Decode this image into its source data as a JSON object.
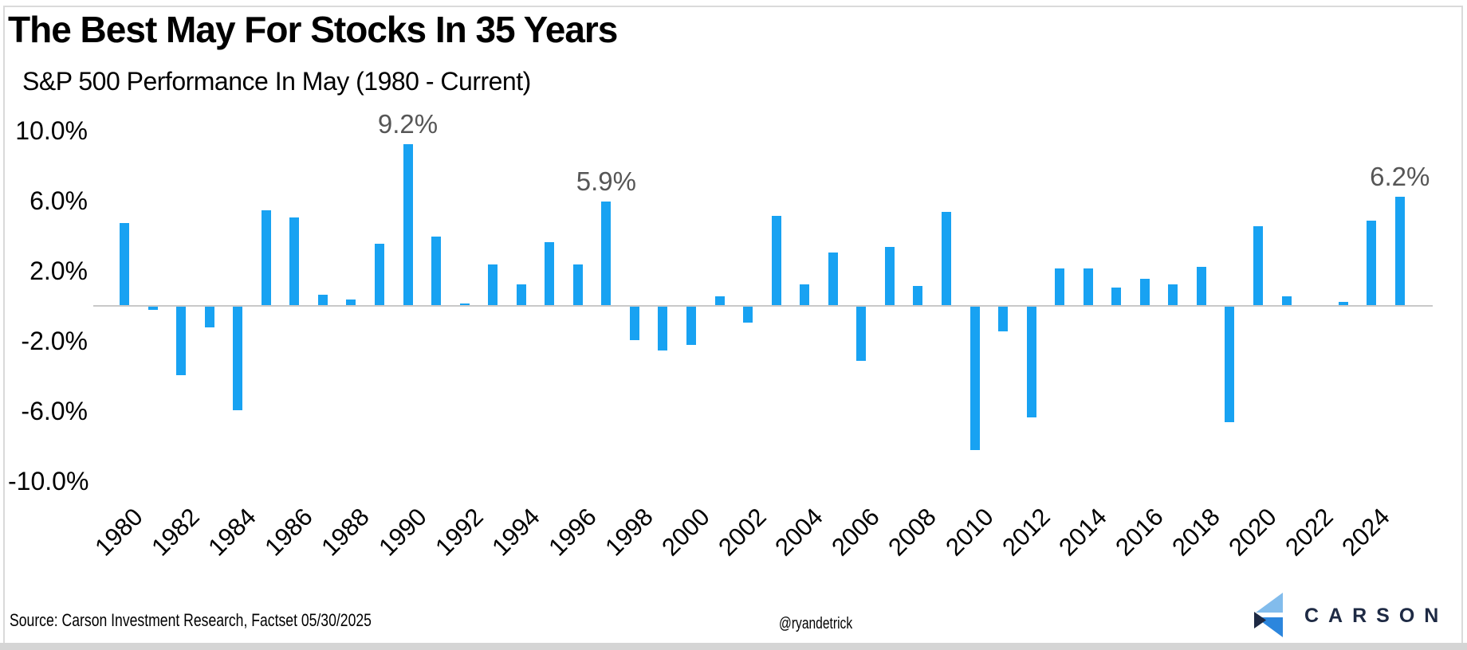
{
  "header": {
    "title": "The Best May For Stocks In 35 Years",
    "subtitle": "S&P 500 Performance In May (1980 - Current)"
  },
  "footer": {
    "source": "Source: Carson Investment Research, Factset 05/30/2025",
    "handle": "@ryandetrick",
    "logo_text": "CARSON"
  },
  "colors": {
    "bar": "#18A2F2",
    "annotation": "#565656",
    "baseline": "#C9C9C9",
    "logo_navy": "#1E2A44",
    "logo_light_blue": "#82BCEC",
    "logo_mid_blue": "#2C86DD"
  },
  "chart_data": {
    "type": "bar",
    "title": "The Best May For Stocks In 35 Years",
    "subtitle": "S&P 500 Performance In May (1980 - Current)",
    "xlabel": "",
    "ylabel": "",
    "grid": false,
    "ylim": [
      -10,
      10
    ],
    "x": [
      1980,
      1981,
      1982,
      1983,
      1984,
      1985,
      1986,
      1987,
      1988,
      1989,
      1990,
      1991,
      1992,
      1993,
      1994,
      1995,
      1996,
      1997,
      1998,
      1999,
      2000,
      2001,
      2002,
      2003,
      2004,
      2005,
      2006,
      2007,
      2008,
      2009,
      2010,
      2011,
      2012,
      2013,
      2014,
      2015,
      2016,
      2017,
      2018,
      2019,
      2020,
      2021,
      2022,
      2023,
      2024,
      2025
    ],
    "values": [
      4.7,
      -0.2,
      -3.9,
      -1.2,
      -5.9,
      5.4,
      5.0,
      0.6,
      0.3,
      3.5,
      9.2,
      3.9,
      0.1,
      2.3,
      1.2,
      3.6,
      2.3,
      5.9,
      -1.9,
      -2.5,
      -2.2,
      0.5,
      -0.9,
      5.1,
      1.2,
      3.0,
      -3.1,
      3.3,
      1.1,
      5.3,
      -8.2,
      -1.4,
      -6.3,
      2.1,
      2.1,
      1.0,
      1.5,
      1.2,
      2.2,
      -6.6,
      4.5,
      0.5,
      0.0,
      0.2,
      4.8,
      6.2
    ],
    "y_ticks": [
      {
        "label": "10.0%",
        "value": 10
      },
      {
        "label": "6.0%",
        "value": 6
      },
      {
        "label": "2.0%",
        "value": 2
      },
      {
        "label": "-2.0%",
        "value": -2
      },
      {
        "label": "-6.0%",
        "value": -6
      },
      {
        "label": "-10.0%",
        "value": -10
      }
    ],
    "x_tick_years": [
      1980,
      1982,
      1984,
      1986,
      1988,
      1990,
      1992,
      1994,
      1996,
      1998,
      2000,
      2002,
      2004,
      2006,
      2008,
      2010,
      2012,
      2014,
      2016,
      2018,
      2020,
      2022,
      2024
    ],
    "annotations": [
      {
        "x": 1990,
        "value": 9.2,
        "label": "9.2%"
      },
      {
        "x": 1997,
        "value": 5.9,
        "label": "5.9%"
      },
      {
        "x": 2025,
        "value": 6.2,
        "label": "6.2%"
      }
    ],
    "legend": null
  }
}
